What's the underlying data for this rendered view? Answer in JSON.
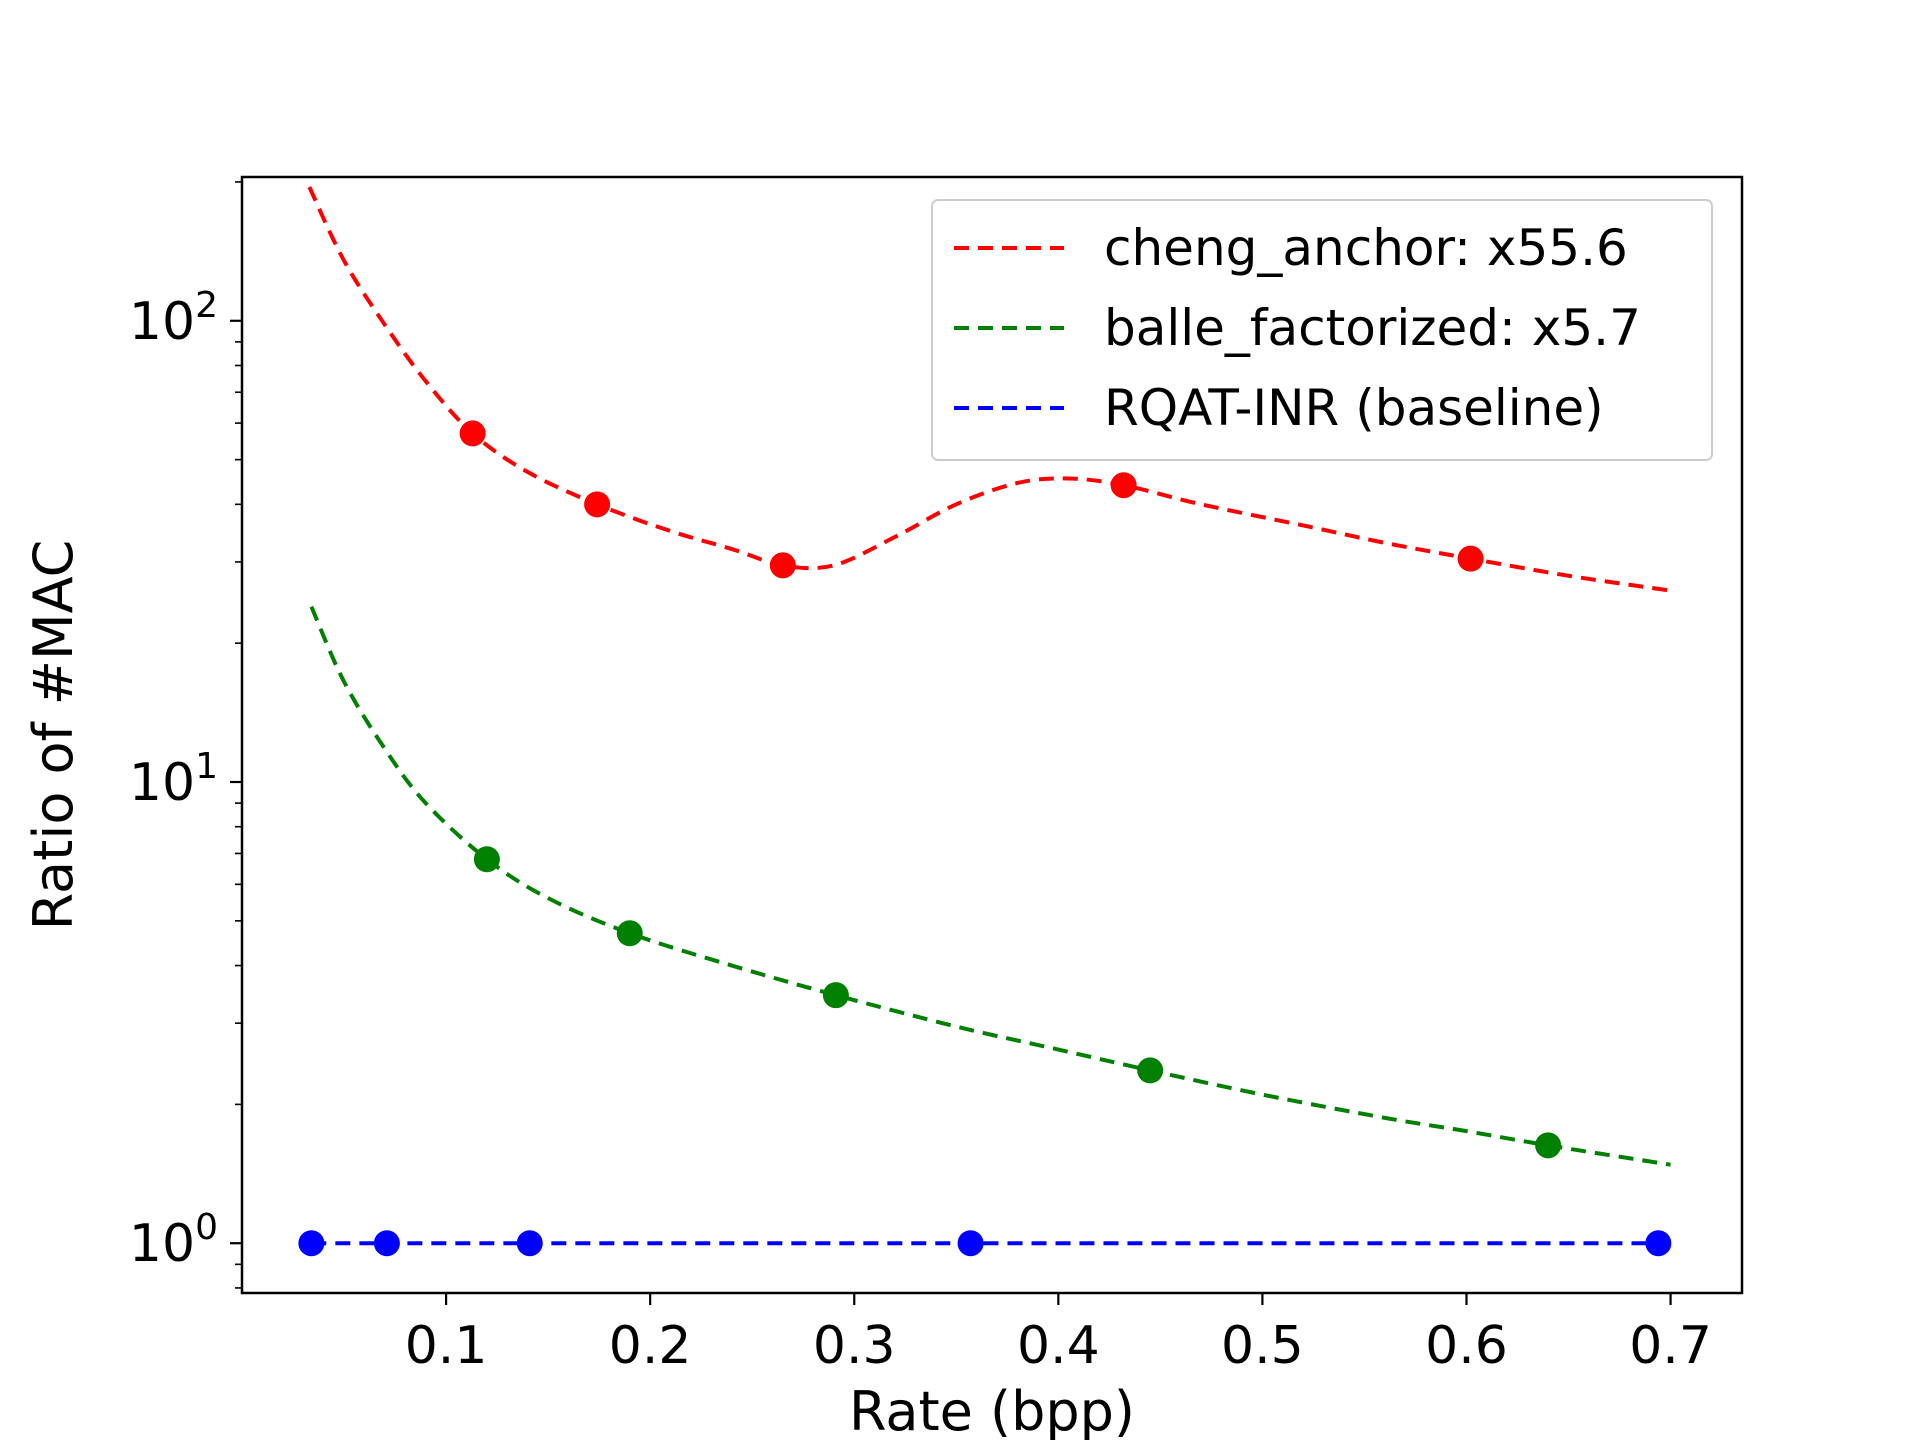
{
  "chart_data": {
    "type": "line",
    "xlabel": "Rate (bpp)",
    "ylabel": "Ratio of #MAC",
    "xlim": [
      0.0,
      0.735
    ],
    "ylim": [
      0.78,
      205
    ],
    "yscale": "log",
    "x_ticks": [
      {
        "value": 0.1,
        "label": "0.1"
      },
      {
        "value": 0.2,
        "label": "0.2"
      },
      {
        "value": 0.3,
        "label": "0.3"
      },
      {
        "value": 0.4,
        "label": "0.4"
      },
      {
        "value": 0.5,
        "label": "0.5"
      },
      {
        "value": 0.6,
        "label": "0.6"
      },
      {
        "value": 0.7,
        "label": "0.7"
      }
    ],
    "y_ticks": [
      {
        "value": 1,
        "base": "10",
        "exp": "0"
      },
      {
        "value": 10,
        "base": "10",
        "exp": "1"
      },
      {
        "value": 100,
        "base": "10",
        "exp": "2"
      }
    ],
    "grid": false,
    "legend_position": "top-right",
    "series": [
      {
        "name": "cheng_anchor: x55.6",
        "color": "#ff0000",
        "points": {
          "x": [
            0.113,
            0.174,
            0.265,
            0.432,
            0.602
          ],
          "y": [
            57,
            40,
            29.5,
            44,
            30.5
          ]
        },
        "curve": {
          "x": [
            0.033,
            0.05,
            0.07,
            0.09,
            0.113,
            0.14,
            0.174,
            0.21,
            0.24,
            0.265,
            0.29,
            0.32,
            0.35,
            0.38,
            0.405,
            0.432,
            0.47,
            0.52,
            0.56,
            0.602,
            0.65,
            0.7
          ],
          "y": [
            195,
            135,
            98,
            74,
            57,
            47,
            40,
            35,
            32,
            29.5,
            29.5,
            34,
            40,
            44.5,
            45.5,
            44,
            40,
            36,
            33,
            30.5,
            28,
            26
          ]
        }
      },
      {
        "name": "balle_factorized: x5.7",
        "color": "#008000",
        "points": {
          "x": [
            0.12,
            0.19,
            0.291,
            0.445,
            0.64
          ],
          "y": [
            6.8,
            4.7,
            3.45,
            2.37,
            1.63
          ]
        },
        "curve": {
          "x": [
            0.034,
            0.05,
            0.07,
            0.09,
            0.12,
            0.15,
            0.19,
            0.24,
            0.291,
            0.35,
            0.4,
            0.445,
            0.5,
            0.56,
            0.6,
            0.64,
            0.7
          ],
          "y": [
            24,
            16.5,
            11.8,
            9.0,
            6.8,
            5.6,
            4.7,
            4.0,
            3.45,
            2.95,
            2.63,
            2.37,
            2.1,
            1.87,
            1.75,
            1.63,
            1.48
          ]
        }
      },
      {
        "name": "RQAT-INR (baseline)",
        "color": "#0000ff",
        "points": {
          "x": [
            0.034,
            0.071,
            0.141,
            0.357,
            0.694
          ],
          "y": [
            1,
            1,
            1,
            1,
            1
          ]
        },
        "curve": {
          "x": [
            0.034,
            0.694
          ],
          "y": [
            1,
            1
          ]
        }
      }
    ]
  }
}
